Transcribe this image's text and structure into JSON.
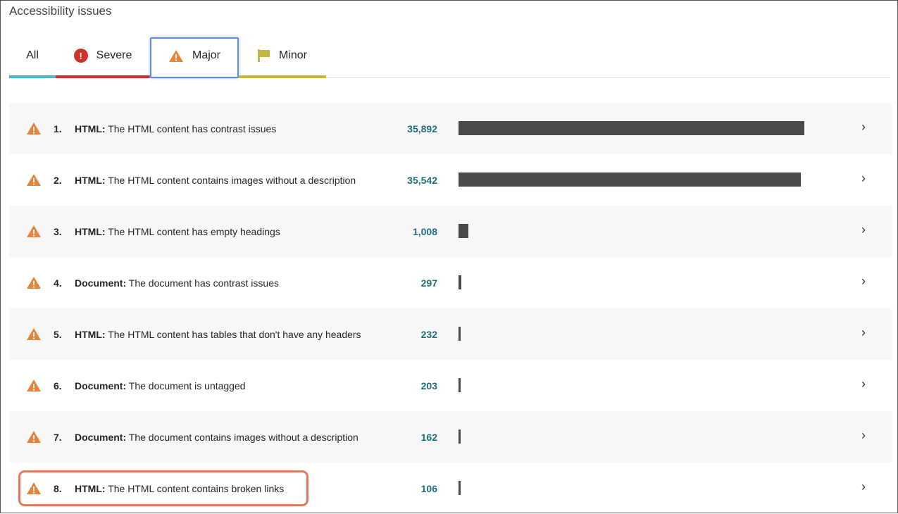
{
  "title": "Accessibility issues",
  "tabs": [
    {
      "label": "All",
      "color": "#4bb3d0",
      "icon": ""
    },
    {
      "label": "Severe",
      "color": "#d0312d",
      "icon": "severe-exclamation-icon"
    },
    {
      "label": "Major",
      "color": "#e8833a",
      "icon": "warning-triangle-icon",
      "selected": true
    },
    {
      "label": "Minor",
      "color": "#c4b640",
      "icon": "flag-icon"
    }
  ],
  "issues": [
    {
      "num": "1.",
      "type": "HTML:",
      "text": "The HTML content has contrast issues",
      "count": "35,892",
      "value": 35892
    },
    {
      "num": "2.",
      "type": "HTML:",
      "text": "The HTML content contains images without a description",
      "count": "35,542",
      "value": 35542
    },
    {
      "num": "3.",
      "type": "HTML:",
      "text": "The HTML content has empty headings",
      "count": "1,008",
      "value": 1008
    },
    {
      "num": "4.",
      "type": "Document:",
      "text": "The document has contrast issues",
      "count": "297",
      "value": 297
    },
    {
      "num": "5.",
      "type": "HTML:",
      "text": "The HTML content has tables that don't have any headers",
      "count": "232",
      "value": 232
    },
    {
      "num": "6.",
      "type": "Document:",
      "text": "The document is untagged",
      "count": "203",
      "value": 203
    },
    {
      "num": "7.",
      "type": "Document:",
      "text": "The document contains images without a description",
      "count": "162",
      "value": 162
    },
    {
      "num": "8.",
      "type": "HTML:",
      "text": "The HTML content contains broken links",
      "count": "106",
      "value": 106
    }
  ]
}
